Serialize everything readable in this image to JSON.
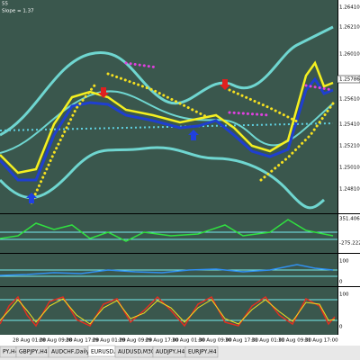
{
  "window": {
    "indicator_label": "55",
    "slope_label": "Slope = 1.37"
  },
  "price_axis": [
    "1.26410",
    "1.26210",
    "1.26010",
    "1.25610",
    "1.25410",
    "1.25210",
    "1.25010",
    "1.24810"
  ],
  "current_price": "1.25786",
  "subwindows": [
    [
      "351.4064",
      "-275.2223"
    ],
    [
      "100",
      "0"
    ],
    [
      "100",
      "0"
    ]
  ],
  "time_axis": [
    "28 Aug 01:00",
    "28 Aug 09:00",
    "28 Aug 17:00",
    "29 Aug 01:00",
    "29 Aug 09:00",
    "29 Aug 17:00",
    "30 Aug 01:00",
    "30 Aug 09:00",
    "30 Aug 17:00",
    "31 Aug 01:00",
    "31 Aug 09:00",
    "31 Aug 17:00"
  ],
  "tabs": [
    "PY,H4",
    "GBPJPY,H4",
    "AUDCHF,Daily",
    "EURUSD,H1",
    "AUDUSD,M30",
    "AUDJPY,H4",
    "EURJPY,H4"
  ],
  "active_tab": 3
}
